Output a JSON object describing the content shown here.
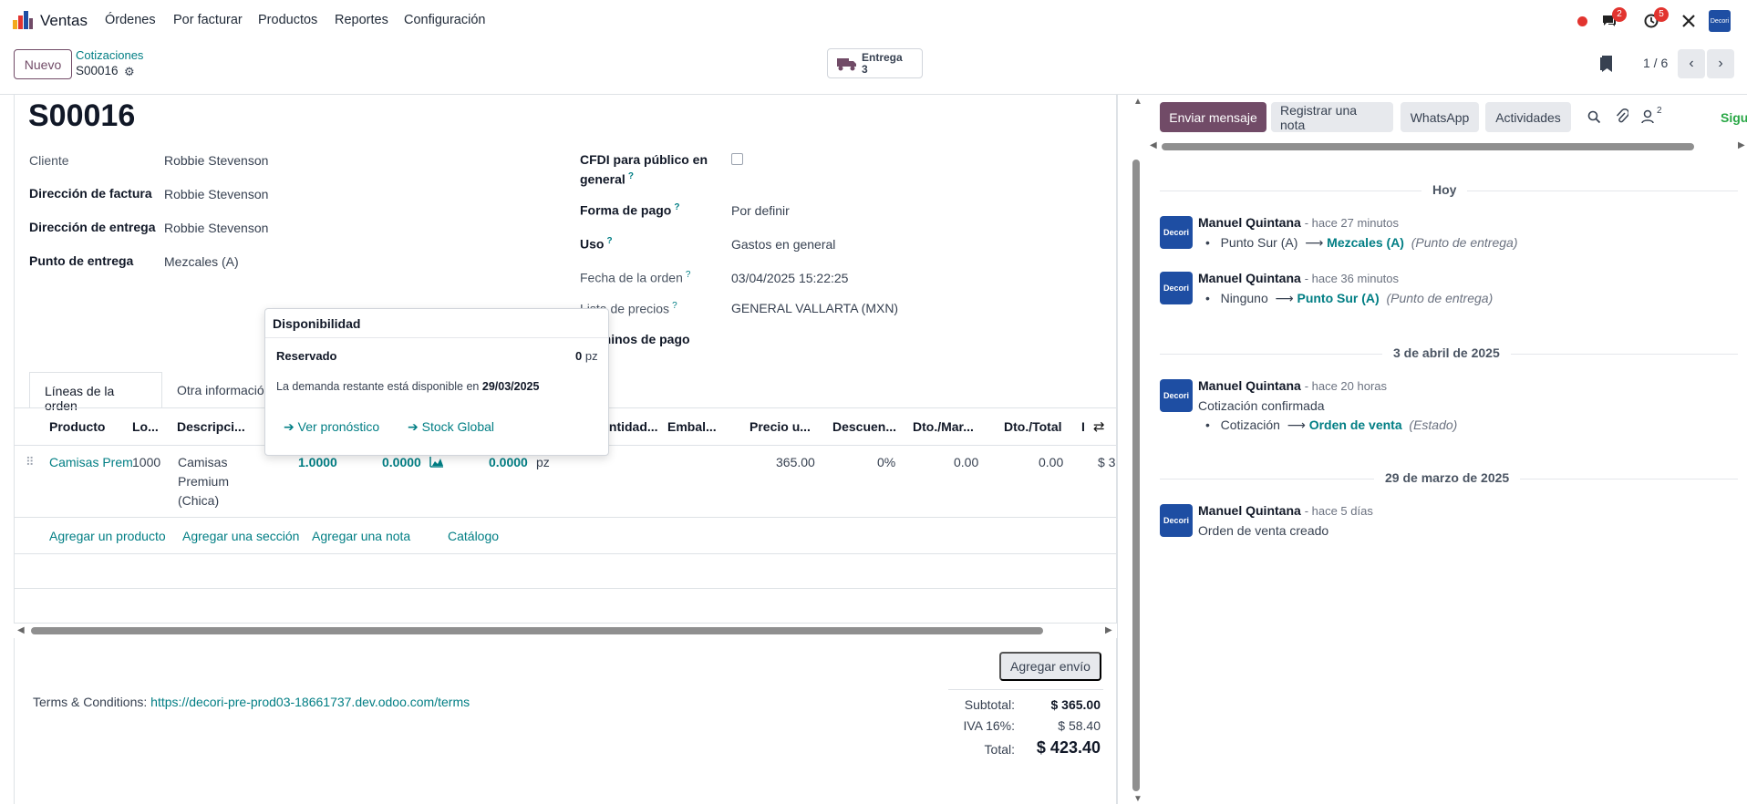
{
  "navbar": {
    "app_name": "Ventas",
    "menus": [
      "Órdenes",
      "Por facturar",
      "Productos",
      "Reportes",
      "Configuración"
    ],
    "messages_badge": "2",
    "activities_badge": "5",
    "company_avatar": "Decori"
  },
  "control_panel": {
    "new_button": "Nuevo",
    "breadcrumb": "Cotizaciones",
    "record": "S00016",
    "smart_button": {
      "label": "Entrega",
      "count": "3"
    },
    "pager": "1 / 6"
  },
  "form": {
    "title": "S00016",
    "left_fields": [
      {
        "label": "Cliente",
        "value": "Robbie Stevenson"
      },
      {
        "label": "Dirección de factura",
        "value": "Robbie Stevenson"
      },
      {
        "label": "Dirección de entrega",
        "value": "Robbie Stevenson"
      },
      {
        "label": "Punto de entrega",
        "value": "Mezcales (A)"
      }
    ],
    "right_fields": {
      "cfdi_label": "CFDI para público en",
      "cfdi_label2": "general",
      "forma_pago_label": "Forma de pago",
      "forma_pago_value": "Por definir",
      "uso_label": "Uso",
      "uso_value": "Gastos en general",
      "fecha_label": "Fecha de la orden",
      "fecha_value": "03/04/2025 15:22:25",
      "lista_label": "Lista de precios",
      "lista_value": "GENERAL VALLARTA (MXN)",
      "terminos_label": "Términos de pago"
    }
  },
  "tabs": [
    "Líneas de la orden",
    "Otra información"
  ],
  "table": {
    "headers": [
      "Producto",
      "Lo...",
      "Descripci...",
      "Cantidad...",
      "Embal...",
      "Precio u...",
      "Descuen...",
      "Dto./Mar...",
      "Dto./Total",
      "I"
    ],
    "row": {
      "product": "Camisas Prem",
      "lot": "1000",
      "description": [
        "Camisas",
        "Premium",
        "(Chica)"
      ],
      "qty1": "1.0000",
      "qty2": "0.0000",
      "qty3": "0.0000",
      "uom": "pz",
      "price": "365.00",
      "discount": "0%",
      "dto_mar": "0.00",
      "dto_total": "0.00",
      "tax": "$ 3"
    },
    "add_links": [
      "Agregar un producto",
      "Agregar una sección",
      "Agregar una nota",
      "Catálogo"
    ]
  },
  "popover": {
    "title": "Disponibilidad",
    "reserved_label": "Reservado",
    "reserved_value": "0",
    "reserved_unit": "pz",
    "demand_text": "La demanda restante está disponible en",
    "demand_date": "29/03/2025",
    "link_forecast": "Ver pronóstico",
    "link_stock": "Stock Global"
  },
  "footer": {
    "shipping_button": "Agregar envío",
    "terms_label": "Terms & Conditions:",
    "terms_url": "https://decori-pre-prod03-18661737.dev.odoo.com/terms",
    "subtotal_label": "Subtotal:",
    "subtotal_value": "$ 365.00",
    "iva_label": "IVA 16%:",
    "iva_value": "$ 58.40",
    "total_label": "Total:",
    "total_value": "$ 423.40"
  },
  "chatter": {
    "buttons": [
      "Enviar mensaje",
      "Registrar una nota",
      "WhatsApp",
      "Actividades"
    ],
    "followers_count": "2",
    "follow_label": "Sigu",
    "groups": [
      {
        "date": "Hoy"
      },
      {
        "date": "3 de abril de 2025"
      },
      {
        "date": "29 de marzo de 2025"
      }
    ],
    "messages": [
      {
        "author": "Manuel Quintana",
        "time": "- hace 27 minutos",
        "old": "Punto Sur (A)",
        "new": "Mezcales (A)",
        "field": "(Punto de entrega)"
      },
      {
        "author": "Manuel Quintana",
        "time": "- hace 36 minutos",
        "old": "Ninguno",
        "new": "Punto Sur (A)",
        "field": "(Punto de entrega)"
      },
      {
        "author": "Manuel Quintana",
        "time": "- hace 20 horas",
        "body": "Cotización confirmada",
        "old": "Cotización",
        "new": "Orden de venta",
        "field": "(Estado)"
      },
      {
        "author": "Manuel Quintana",
        "time": "- hace 5 días",
        "body": "Orden de venta creado"
      }
    ],
    "avatar_text": "Decori"
  },
  "colors": {
    "primary": "#714b67",
    "link": "#017e84",
    "badge": "#e2342f",
    "avatar": "#1e4ea3"
  }
}
